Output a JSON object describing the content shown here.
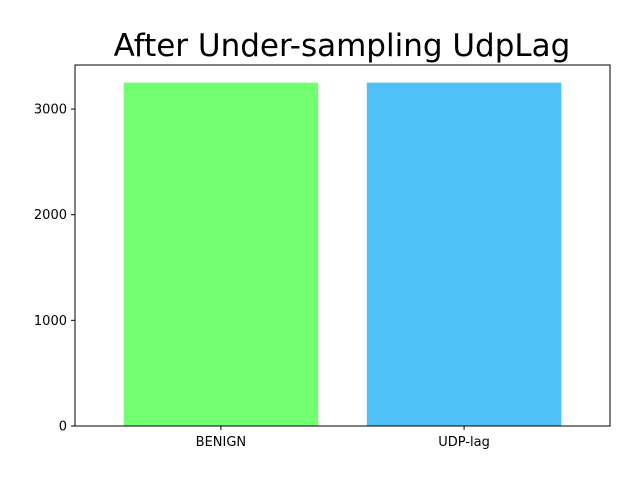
{
  "chart_data": {
    "type": "bar",
    "title": "After Under-sampling UdpLag",
    "xlabel": "",
    "ylabel": "",
    "categories": [
      "BENIGN",
      "UDP-lag"
    ],
    "values": [
      3250,
      3250
    ],
    "colors": [
      "#72ff72",
      "#4fc1f7"
    ],
    "ylim": [
      0,
      3417
    ],
    "yticks": [
      0,
      1000,
      2000,
      3000
    ],
    "ytick_labels": [
      "0",
      "1000",
      "2000",
      "3000"
    ],
    "grid": false,
    "legend": "none"
  }
}
